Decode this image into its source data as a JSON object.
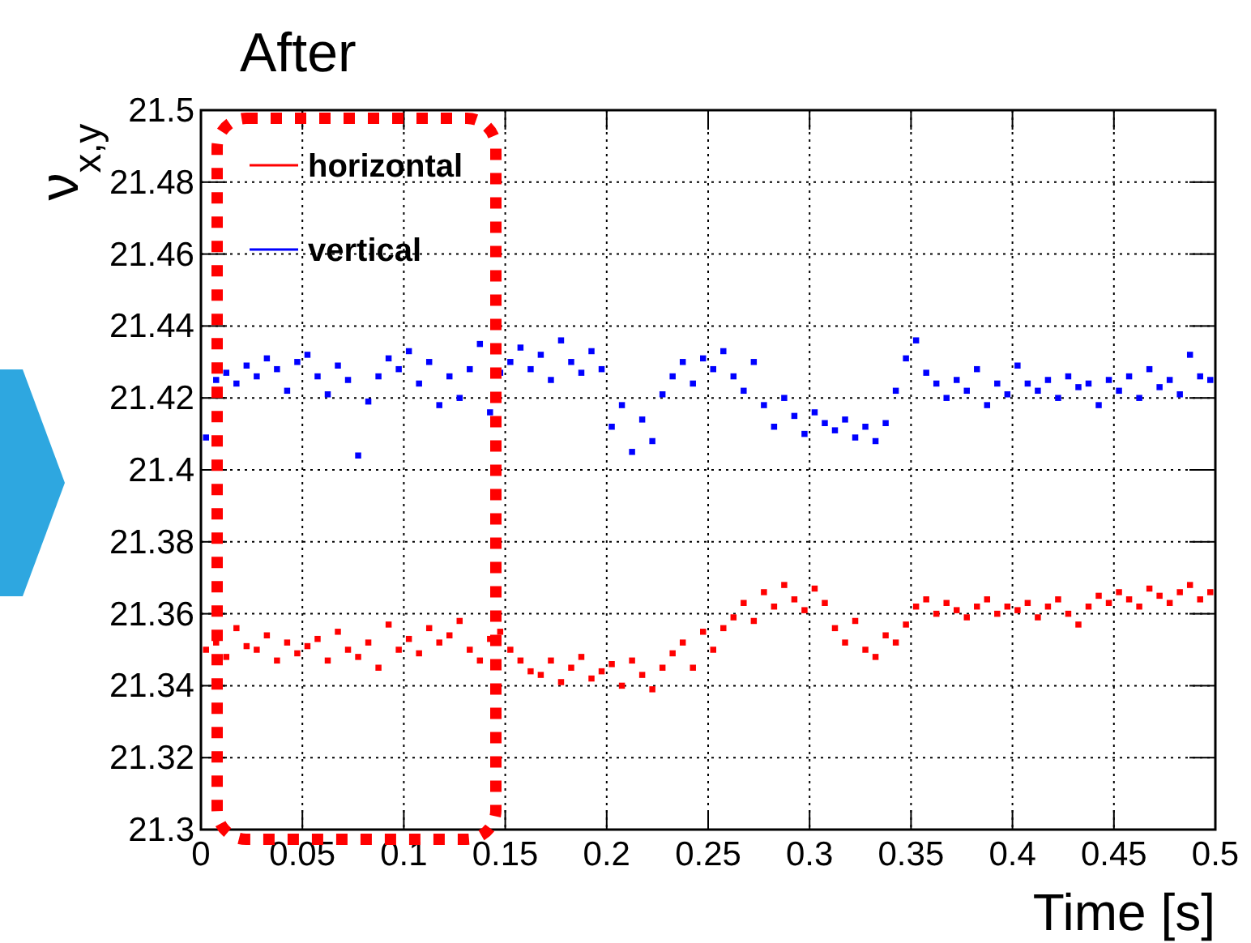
{
  "chart_data": {
    "type": "scatter",
    "title": "After",
    "xlabel": "Time [s]",
    "ylabel": "ν$_{x,y}$",
    "x": [
      0.0025,
      0.0075,
      0.0125,
      0.0175,
      0.0225,
      0.0275,
      0.0325,
      0.0375,
      0.0425,
      0.0475,
      0.0525,
      0.0575,
      0.0625,
      0.0675,
      0.0725,
      0.0775,
      0.0825,
      0.0875,
      0.0925,
      0.0975,
      0.1025,
      0.1075,
      0.1125,
      0.1175,
      0.1225,
      0.1275,
      0.1325,
      0.1375,
      0.1425,
      0.1475,
      0.1525,
      0.1575,
      0.1625,
      0.1675,
      0.1725,
      0.1775,
      0.1825,
      0.1875,
      0.1925,
      0.1975,
      0.2025,
      0.2075,
      0.2125,
      0.2175,
      0.2225,
      0.2275,
      0.2325,
      0.2375,
      0.2425,
      0.2475,
      0.2525,
      0.2575,
      0.2625,
      0.2675,
      0.2725,
      0.2775,
      0.2825,
      0.2875,
      0.2925,
      0.2975,
      0.3025,
      0.3075,
      0.3125,
      0.3175,
      0.3225,
      0.3275,
      0.3325,
      0.3375,
      0.3425,
      0.3475,
      0.3525,
      0.3575,
      0.3625,
      0.3675,
      0.3725,
      0.3775,
      0.3825,
      0.3875,
      0.3925,
      0.3975,
      0.4025,
      0.4075,
      0.4125,
      0.4175,
      0.4225,
      0.4275,
      0.4325,
      0.4375,
      0.4425,
      0.4475,
      0.4525,
      0.4575,
      0.4625,
      0.4675,
      0.4725,
      0.4775,
      0.4825,
      0.4875,
      0.4925,
      0.4975
    ],
    "series": [
      {
        "name": "horizontal",
        "color": "#ff0000",
        "values": [
          21.35,
          21.352,
          21.348,
          21.356,
          21.351,
          21.35,
          21.354,
          21.347,
          21.352,
          21.349,
          21.351,
          21.353,
          21.347,
          21.355,
          21.35,
          21.348,
          21.352,
          21.345,
          21.357,
          21.35,
          21.353,
          21.349,
          21.356,
          21.352,
          21.354,
          21.358,
          21.35,
          21.347,
          21.353,
          21.355,
          21.35,
          21.347,
          21.344,
          21.343,
          21.347,
          21.341,
          21.345,
          21.348,
          21.342,
          21.344,
          21.346,
          21.34,
          21.347,
          21.343,
          21.339,
          21.345,
          21.349,
          21.352,
          21.345,
          21.355,
          21.35,
          21.356,
          21.359,
          21.363,
          21.358,
          21.366,
          21.362,
          21.368,
          21.364,
          21.361,
          21.367,
          21.363,
          21.356,
          21.352,
          21.358,
          21.35,
          21.348,
          21.354,
          21.352,
          21.357,
          21.362,
          21.364,
          21.36,
          21.363,
          21.361,
          21.359,
          21.362,
          21.364,
          21.36,
          21.362,
          21.361,
          21.363,
          21.359,
          21.362,
          21.364,
          21.36,
          21.357,
          21.362,
          21.365,
          21.363,
          21.366,
          21.364,
          21.362,
          21.367,
          21.365,
          21.363,
          21.366,
          21.368,
          21.364,
          21.366
        ]
      },
      {
        "name": "vertical",
        "color": "#0000ff",
        "values": [
          21.409,
          21.425,
          21.427,
          21.424,
          21.429,
          21.426,
          21.431,
          21.428,
          21.422,
          21.43,
          21.432,
          21.426,
          21.421,
          21.429,
          21.425,
          21.404,
          21.419,
          21.426,
          21.431,
          21.428,
          21.433,
          21.424,
          21.43,
          21.418,
          21.426,
          21.42,
          21.428,
          21.435,
          21.416,
          21.427,
          21.43,
          21.434,
          21.428,
          21.432,
          21.425,
          21.436,
          21.43,
          21.427,
          21.433,
          21.428,
          21.412,
          21.418,
          21.405,
          21.414,
          21.408,
          21.421,
          21.426,
          21.43,
          21.424,
          21.431,
          21.428,
          21.433,
          21.426,
          21.422,
          21.43,
          21.418,
          21.412,
          21.42,
          21.415,
          21.41,
          21.416,
          21.413,
          21.411,
          21.414,
          21.409,
          21.412,
          21.408,
          21.413,
          21.422,
          21.431,
          21.436,
          21.427,
          21.424,
          21.42,
          21.425,
          21.422,
          21.428,
          21.418,
          21.424,
          21.421,
          21.429,
          21.424,
          21.422,
          21.425,
          21.42,
          21.426,
          21.423,
          21.424,
          21.418,
          21.425,
          21.422,
          21.426,
          21.42,
          21.428,
          21.423,
          21.425,
          21.421,
          21.432,
          21.426,
          21.425
        ]
      }
    ],
    "xlim": [
      0,
      0.5
    ],
    "xticks": [
      0,
      0.05,
      0.1,
      0.15,
      0.2,
      0.25,
      0.3,
      0.35,
      0.4,
      0.45,
      0.5
    ],
    "ylim": [
      21.3,
      21.5
    ],
    "yticks": [
      21.3,
      21.32,
      21.34,
      21.36,
      21.38,
      21.4,
      21.42,
      21.44,
      21.46,
      21.48,
      21.5
    ],
    "grid": true,
    "legend": "top left",
    "marker": "square"
  }
}
